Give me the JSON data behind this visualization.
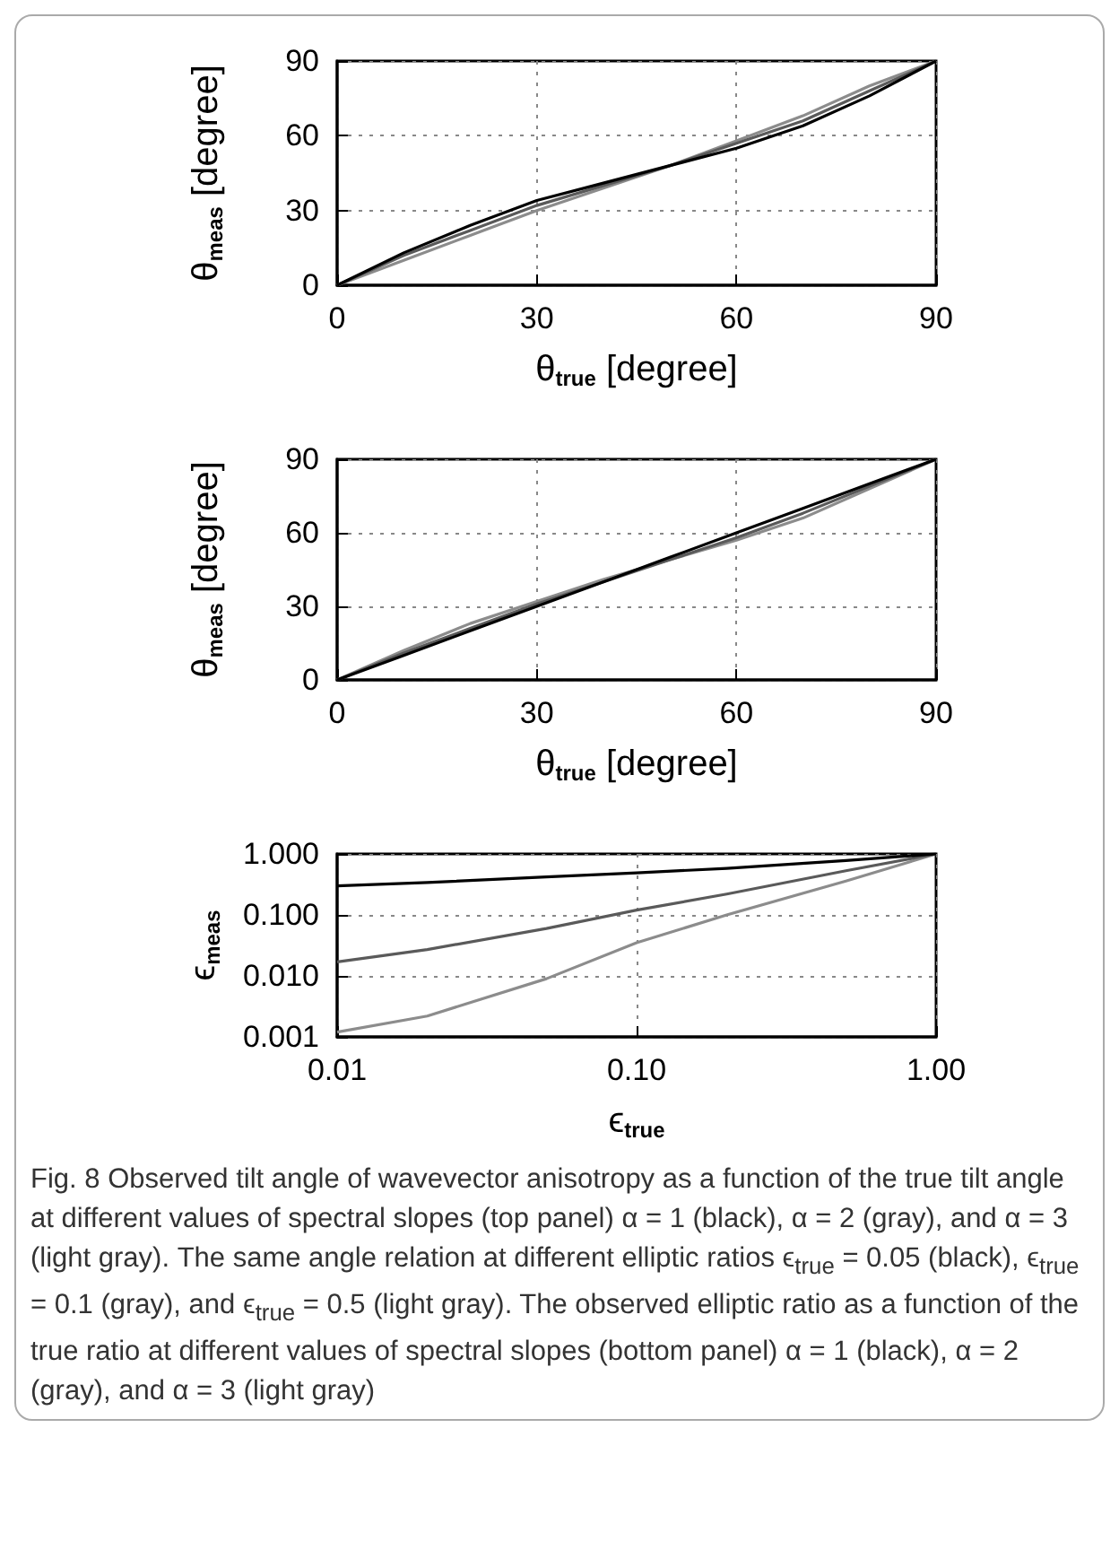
{
  "chart_data": [
    {
      "type": "line",
      "xlabel": "θ$_{true}$ [degree]",
      "ylabel": "θ$_{meas}$ [degree]",
      "x": [
        0,
        10,
        20,
        30,
        40,
        50,
        60,
        70,
        80,
        90
      ],
      "xlim": [
        0,
        90
      ],
      "xticks": [
        0,
        30,
        60,
        90
      ],
      "ylim": [
        0,
        90
      ],
      "yticks": [
        0,
        30,
        60,
        90
      ],
      "grid": true,
      "marker": "none",
      "line_style": "solid",
      "series": [
        {
          "color": "#8c8c8c",
          "values": [
            0,
            10,
            20,
            30,
            39,
            48,
            58,
            68,
            80,
            90
          ]
        },
        {
          "color": "#5a5a5a",
          "values": [
            0,
            12,
            22,
            32,
            40,
            48,
            57,
            66,
            78,
            90
          ]
        },
        {
          "color": "#000000",
          "values": [
            0,
            13,
            24,
            34,
            41,
            48,
            55,
            64,
            76,
            90
          ]
        }
      ]
    },
    {
      "type": "line",
      "xlabel": "θ$_{true}$ [degree]",
      "ylabel": "θ$_{meas}$ [degree]",
      "x": [
        0,
        10,
        20,
        30,
        40,
        50,
        60,
        70,
        80,
        90
      ],
      "xlim": [
        0,
        90
      ],
      "xticks": [
        0,
        30,
        60,
        90
      ],
      "ylim": [
        0,
        90
      ],
      "yticks": [
        0,
        30,
        60,
        90
      ],
      "grid": true,
      "marker": "none",
      "line_style": "solid",
      "series": [
        {
          "color": "#8c8c8c",
          "values": [
            0,
            12,
            23,
            32,
            41,
            49,
            57,
            66,
            78,
            90
          ]
        },
        {
          "color": "#5a5a5a",
          "values": [
            0,
            11,
            21,
            31,
            40,
            49,
            58,
            68,
            79,
            90
          ]
        },
        {
          "color": "#000000",
          "values": [
            0,
            10,
            20,
            30,
            40,
            50,
            60,
            70,
            80,
            90
          ]
        }
      ]
    },
    {
      "type": "line",
      "xlabel": "ϵ$_{true}$",
      "ylabel": "ϵ$_{meas}$",
      "x": [
        0.01,
        0.02,
        0.05,
        0.1,
        0.2,
        0.5,
        1
      ],
      "xlim": [
        0.01,
        1
      ],
      "xticks": [
        {
          "value": 0.01,
          "label": "0.01"
        },
        {
          "value": 0.1,
          "label": "0.10"
        },
        {
          "value": 1,
          "label": "1.00"
        }
      ],
      "ylim": [
        0.001,
        1
      ],
      "yticks": [
        {
          "value": 0.001,
          "label": "0.001"
        },
        {
          "value": 0.01,
          "label": "0.010"
        },
        {
          "value": 0.1,
          "label": "0.100"
        },
        {
          "value": 1,
          "label": "1.000"
        }
      ],
      "log": "xy",
      "grid": true,
      "marker": "none",
      "line_style": "solid",
      "series": [
        {
          "color": "#8c8c8c",
          "values": [
            0.0012,
            0.0022,
            0.009,
            0.035,
            0.1,
            0.36,
            1
          ]
        },
        {
          "color": "#5a5a5a",
          "values": [
            0.017,
            0.027,
            0.06,
            0.12,
            0.22,
            0.53,
            1
          ]
        },
        {
          "color": "#000000",
          "values": [
            0.3,
            0.34,
            0.42,
            0.49,
            0.58,
            0.78,
            1
          ]
        }
      ],
      "annotations": [
        "Fig. 8  Observed tilt angle of wavevector anisotropy as a function of the true tilt angle at different values of spectral slopes (top panel) α = 1 (black), α = 2 (gray), and α = 3 (light gray). The same angle relation at different elliptic ratios ϵ$_{true}$ = 0.05 (black), ϵ$_{true}$ = 0.1 (gray), and ϵ$_{true}$ = 0.5 (light gray). The observed elliptic ratio as a function of the true ratio at different values of spectral slopes (bottom panel) α = 1 (black), α = 2 (gray), and α = 3 (light gray)"
      ]
    }
  ]
}
